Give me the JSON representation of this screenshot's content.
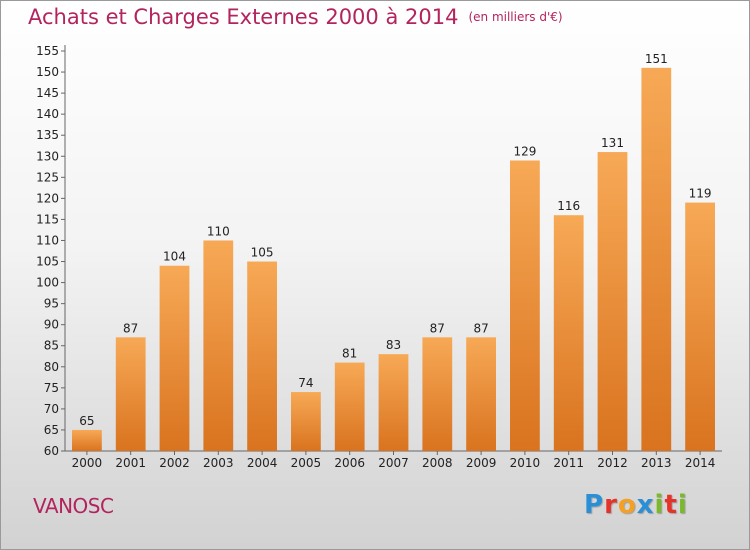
{
  "header": {
    "title": "Achats et Charges Externes 2000 à 2014",
    "unit": "(en milliers d'€)"
  },
  "commune": "VANOSC",
  "logo": {
    "letters": [
      "P",
      "r",
      "o",
      "x",
      "i",
      "t",
      "i"
    ],
    "colors": [
      "#2a8fd6",
      "#e5332a",
      "#f4a024",
      "#2a8fd6",
      "#7ab929",
      "#e5332a",
      "#7ab929"
    ]
  },
  "chart_data": {
    "type": "bar",
    "title": "Achats et Charges Externes 2000 à 2014",
    "subtitle": "(en milliers d'€)",
    "categories": [
      "2000",
      "2001",
      "2002",
      "2003",
      "2004",
      "2005",
      "2006",
      "2007",
      "2008",
      "2009",
      "2010",
      "2011",
      "2012",
      "2013",
      "2014"
    ],
    "values": [
      65,
      87,
      104,
      110,
      105,
      74,
      81,
      83,
      87,
      87,
      129,
      116,
      131,
      151,
      119
    ],
    "ylim": [
      60,
      155
    ],
    "yticks": [
      60,
      65,
      70,
      75,
      80,
      85,
      90,
      95,
      100,
      105,
      110,
      115,
      120,
      125,
      130,
      135,
      140,
      145,
      150,
      155
    ],
    "grid": false,
    "colors": {
      "bar_top": "#f7a956",
      "bar_bottom": "#d9731f",
      "axis": "#666666"
    }
  }
}
